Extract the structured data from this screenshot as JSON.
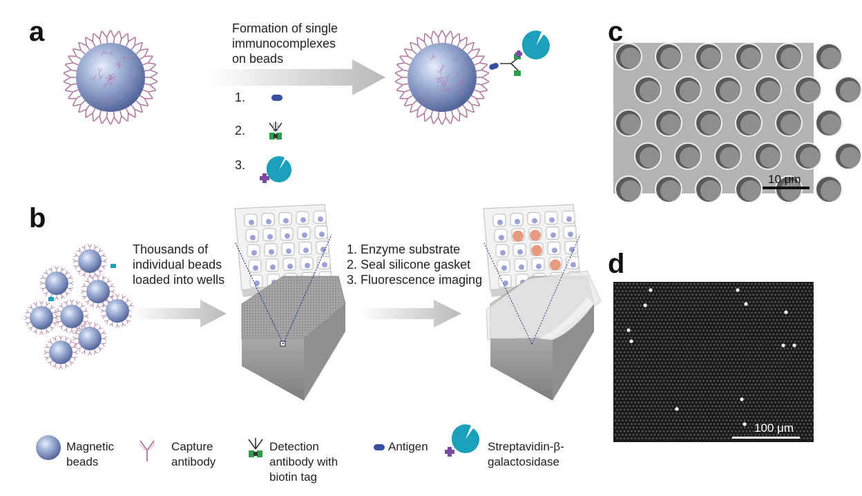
{
  "panels": {
    "a": "a",
    "b": "b",
    "c": "c",
    "d": "d"
  },
  "panel_a": {
    "caption": [
      "Formation of single",
      "immunocomplexes",
      "on beads"
    ],
    "steps": [
      "1.",
      "2.",
      "3."
    ]
  },
  "panel_b": {
    "caption1": [
      "Thousands of",
      "individual beads",
      "loaded into wells"
    ],
    "caption2": [
      "1. Enzyme substrate",
      "2. Seal silicone gasket",
      "3. Fluorescence imaging"
    ]
  },
  "panel_c": {
    "scale_label": "10 μm"
  },
  "panel_d": {
    "scale_label": "100 μm"
  },
  "legend": {
    "magnetic": [
      "Magnetic",
      "beads"
    ],
    "capture": [
      "Capture",
      "antibody"
    ],
    "detection": [
      "Detection",
      "antibody with",
      "biotin tag"
    ],
    "antigen": "Antigen",
    "enzyme": [
      "Streptavidin-β-",
      "galactosidase"
    ]
  },
  "colors": {
    "bead": "#8a9fc9",
    "capture_antibody": "#b070a0",
    "biotin": "#2e9e4e",
    "antigen": "#3a4fa0",
    "enzyme": "#1aa0b8",
    "streptavidin_cross": "#7a4aa0"
  }
}
